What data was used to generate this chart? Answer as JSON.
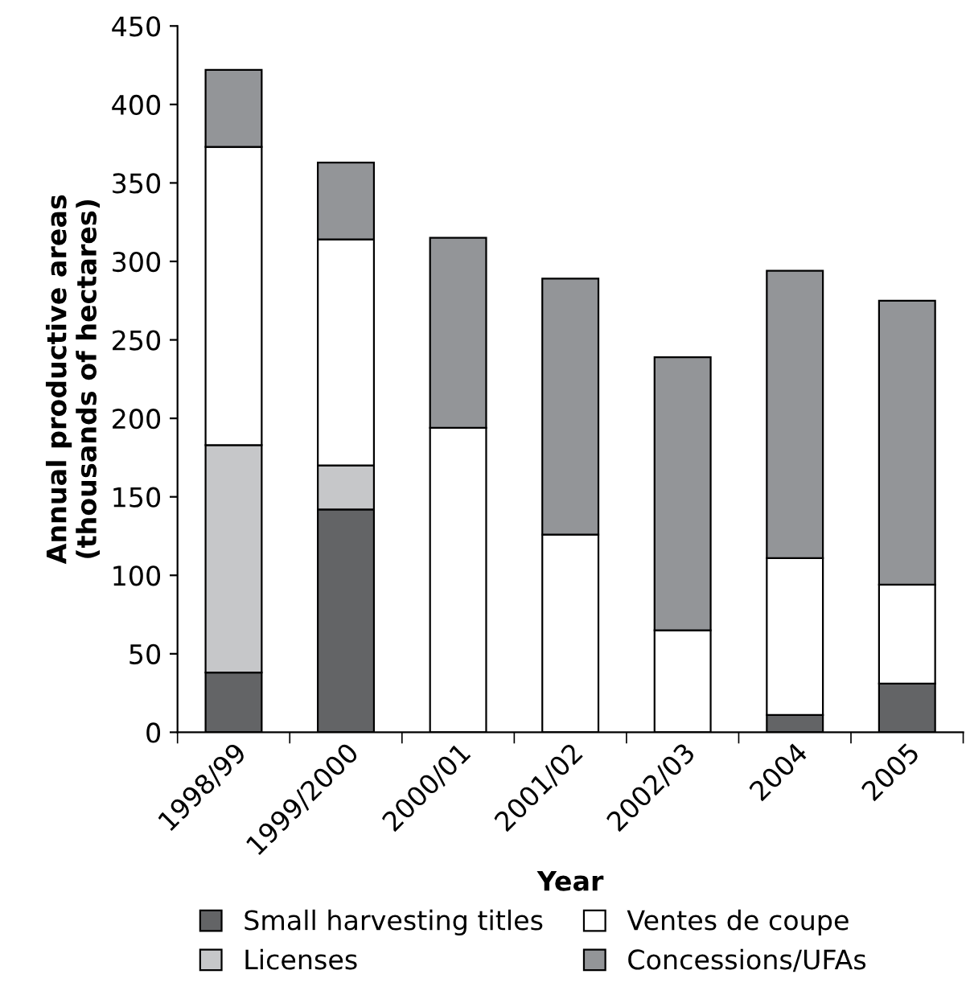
{
  "chart_data": {
    "type": "bar",
    "stacked": true,
    "xlabel": "Year",
    "ylabel": "Annual productive areas\n(thousands of hectares)",
    "categories": [
      "1998/99",
      "1999/2000",
      "2000/01",
      "2001/02",
      "2002/03",
      "2004",
      "2005"
    ],
    "series": [
      {
        "name": "Small harvesting titles",
        "color": "#636466",
        "values": [
          38,
          142,
          0,
          0,
          0,
          11,
          31
        ]
      },
      {
        "name": "Licenses",
        "color": "#c6c7c9",
        "values": [
          145,
          28,
          0,
          0,
          0,
          0,
          0
        ]
      },
      {
        "name": "Ventes de coupe",
        "color": "#ffffff",
        "values": [
          190,
          144,
          194,
          126,
          65,
          100,
          63
        ]
      },
      {
        "name": "Concessions/UFAs",
        "color": "#939598",
        "values": [
          49,
          49,
          121,
          163,
          174,
          183,
          181
        ]
      }
    ],
    "ylim": [
      0,
      450
    ],
    "yticks": [
      0,
      50,
      100,
      150,
      200,
      250,
      300,
      350,
      400,
      450
    ],
    "grid": false,
    "legend": "bottom"
  }
}
